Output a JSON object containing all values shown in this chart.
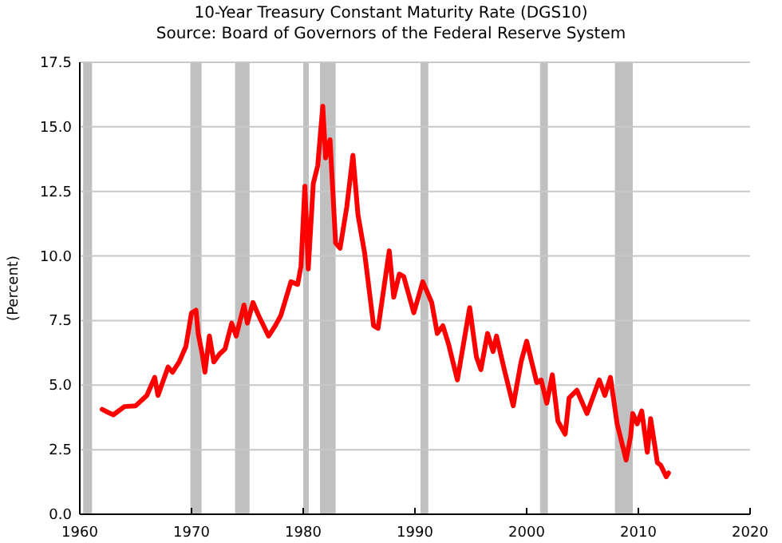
{
  "chart_data": {
    "type": "line",
    "title": "10-Year Treasury Constant Maturity Rate (DGS10)",
    "subtitle": "Source: Board of Governors of the Federal Reserve System",
    "ylabel": "(Percent)",
    "xlim": [
      1960,
      2020
    ],
    "xticks": [
      1960,
      1970,
      1980,
      1990,
      2000,
      2010,
      2020
    ],
    "ylim": [
      0,
      17.5
    ],
    "yticks": [
      {
        "value": 0,
        "label": "0.0"
      },
      {
        "value": 2.5,
        "label": "2.5"
      },
      {
        "value": 5,
        "label": "5.0"
      },
      {
        "value": 7.5,
        "label": "7.5"
      },
      {
        "value": 10,
        "label": "10.0"
      },
      {
        "value": 12.5,
        "label": "12.5"
      },
      {
        "value": 15,
        "label": "15.0"
      },
      {
        "value": 17.5,
        "label": "17.5"
      }
    ],
    "grid": "y",
    "line_style": "solid",
    "marker": "none",
    "bands": [
      {
        "axis": "x",
        "from": 1960.3,
        "to": 1961.1,
        "color": "#c0c0c0"
      },
      {
        "axis": "x",
        "from": 1969.9,
        "to": 1970.9,
        "color": "#c0c0c0"
      },
      {
        "axis": "x",
        "from": 1973.9,
        "to": 1975.2,
        "color": "#c0c0c0"
      },
      {
        "axis": "x",
        "from": 1980,
        "to": 1980.5,
        "color": "#c0c0c0"
      },
      {
        "axis": "x",
        "from": 1981.5,
        "to": 1982.9,
        "color": "#c0c0c0"
      },
      {
        "axis": "x",
        "from": 1990.5,
        "to": 1991.2,
        "color": "#c0c0c0"
      },
      {
        "axis": "x",
        "from": 2001.2,
        "to": 2001.9,
        "color": "#c0c0c0"
      },
      {
        "axis": "x",
        "from": 2007.9,
        "to": 2009.5,
        "color": "#c0c0c0"
      }
    ],
    "x": [
      1962.0,
      1962.5,
      1963.0,
      1964.0,
      1965.0,
      1966.0,
      1966.7,
      1967.0,
      1967.9,
      1968.3,
      1968.9,
      1969.5,
      1970.0,
      1970.4,
      1970.6,
      1971.0,
      1971.2,
      1971.6,
      1972.0,
      1972.5,
      1973.0,
      1973.6,
      1974.0,
      1974.7,
      1975.0,
      1975.5,
      1976.0,
      1976.9,
      1977.5,
      1978.0,
      1978.9,
      1979.5,
      1979.8,
      1980.15,
      1980.45,
      1980.9,
      1981.3,
      1981.75,
      1982.0,
      1982.4,
      1982.9,
      1983.3,
      1983.9,
      1984.45,
      1984.9,
      1985.5,
      1986.3,
      1986.7,
      1987.7,
      1988.1,
      1988.6,
      1989.0,
      1989.9,
      1990.7,
      1991.5,
      1992.0,
      1992.5,
      1993.0,
      1993.8,
      1994.9,
      1995.5,
      1995.9,
      1996.5,
      1997.0,
      1997.3,
      1998.0,
      1998.8,
      1999.0,
      1999.5,
      2000.0,
      2000.9,
      2001.3,
      2001.8,
      2002.3,
      2002.8,
      2003.45,
      2003.8,
      2004.5,
      2005.4,
      2006.5,
      2007.0,
      2007.5,
      2008.1,
      2008.9,
      2009.3,
      2009.5,
      2009.9,
      2010.3,
      2010.8,
      2011.1,
      2011.7,
      2012.0,
      2012.5,
      2012.7
    ],
    "series": [
      {
        "color": "#ff0000",
        "values": [
          4.06,
          3.95,
          3.85,
          4.17,
          4.2,
          4.6,
          5.3,
          4.6,
          5.7,
          5.5,
          5.9,
          6.5,
          7.8,
          7.9,
          7.0,
          6.1,
          5.5,
          6.9,
          5.9,
          6.2,
          6.4,
          7.4,
          6.9,
          8.1,
          7.4,
          8.2,
          7.7,
          6.9,
          7.3,
          7.7,
          9.0,
          8.9,
          9.6,
          12.7,
          9.5,
          12.8,
          13.5,
          15.8,
          13.8,
          14.5,
          10.5,
          10.3,
          11.9,
          13.9,
          11.6,
          10.1,
          7.3,
          7.2,
          10.2,
          8.4,
          9.3,
          9.2,
          7.8,
          9.0,
          8.2,
          7.0,
          7.3,
          6.6,
          5.2,
          8.0,
          6.1,
          5.6,
          7.0,
          6.3,
          6.9,
          5.6,
          4.2,
          4.7,
          5.9,
          6.7,
          5.1,
          5.2,
          4.3,
          5.4,
          3.6,
          3.1,
          4.5,
          4.8,
          3.9,
          5.2,
          4.6,
          5.3,
          3.5,
          2.1,
          3.0,
          3.9,
          3.5,
          4.0,
          2.4,
          3.7,
          2.0,
          1.9,
          1.45,
          1.6
        ]
      }
    ]
  }
}
